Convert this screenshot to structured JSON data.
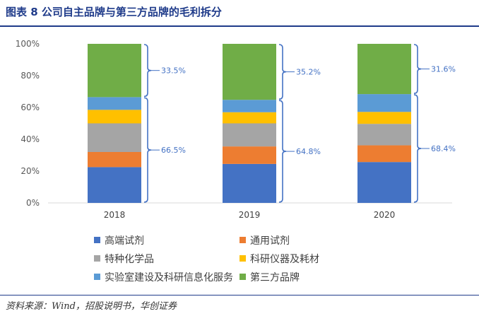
{
  "title": "图表 8   公司自主品牌与第三方品牌的毛利拆分",
  "source": "资料来源：Wind，招股说明书，华创证券",
  "chart_data": {
    "type": "bar",
    "stacked": true,
    "categories": [
      "2018",
      "2019",
      "2020"
    ],
    "ylim": [
      0,
      100
    ],
    "yticks": [
      "0%",
      "20%",
      "40%",
      "60%",
      "80%",
      "100%"
    ],
    "series": [
      {
        "name": "高端试剂",
        "color": "#4472c4",
        "values": [
          22.5,
          24.5,
          25.7
        ]
      },
      {
        "name": "通用试剂",
        "color": "#ed7d31",
        "values": [
          9.5,
          11.0,
          10.5
        ]
      },
      {
        "name": "特种化学品",
        "color": "#a5a5a5",
        "values": [
          18.0,
          14.5,
          13.5
        ]
      },
      {
        "name": "科研仪器及耗材",
        "color": "#ffc000",
        "values": [
          8.5,
          7.0,
          7.5
        ]
      },
      {
        "name": "实验室建设及科研信息化服务",
        "color": "#5b9bd5",
        "values": [
          8.0,
          7.8,
          11.2
        ]
      },
      {
        "name": "第三方品牌",
        "color": "#70ad47",
        "values": [
          33.5,
          35.2,
          31.6
        ]
      }
    ],
    "annotations": {
      "third_party": [
        "33.5%",
        "35.2%",
        "31.6%"
      ],
      "own_brand": [
        "66.5%",
        "64.8%",
        "68.4%"
      ]
    },
    "legend_position": "bottom"
  }
}
